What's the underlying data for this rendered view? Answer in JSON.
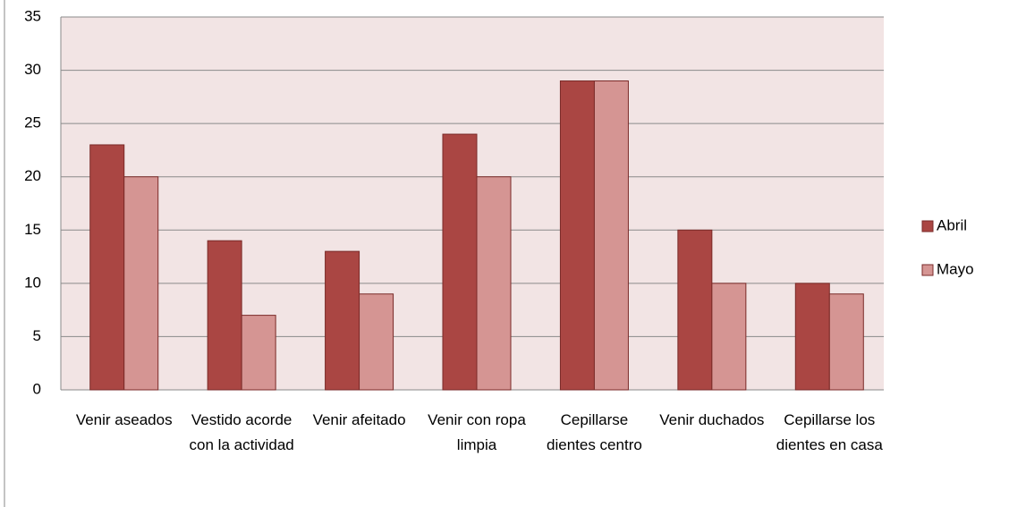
{
  "chart_data": {
    "type": "bar",
    "categories": [
      "Venir aseados",
      "Vestido acorde con la actividad",
      "Venir afeitado",
      "Venir con ropa limpia",
      "Cepillarse dientes centro",
      "Venir duchados",
      "Cepillarse los dientes en casa"
    ],
    "series": [
      {
        "name": "Abril",
        "color": "#aa4643",
        "values": [
          23,
          14,
          13,
          24,
          29,
          15,
          10
        ]
      },
      {
        "name": "Mayo",
        "color": "#d59593",
        "values": [
          20,
          7,
          9,
          20,
          29,
          10,
          9
        ]
      }
    ],
    "ylim": [
      0,
      35
    ],
    "yticks": [
      0,
      5,
      10,
      15,
      20,
      25,
      30,
      35
    ],
    "grid": true,
    "legend": "right"
  }
}
